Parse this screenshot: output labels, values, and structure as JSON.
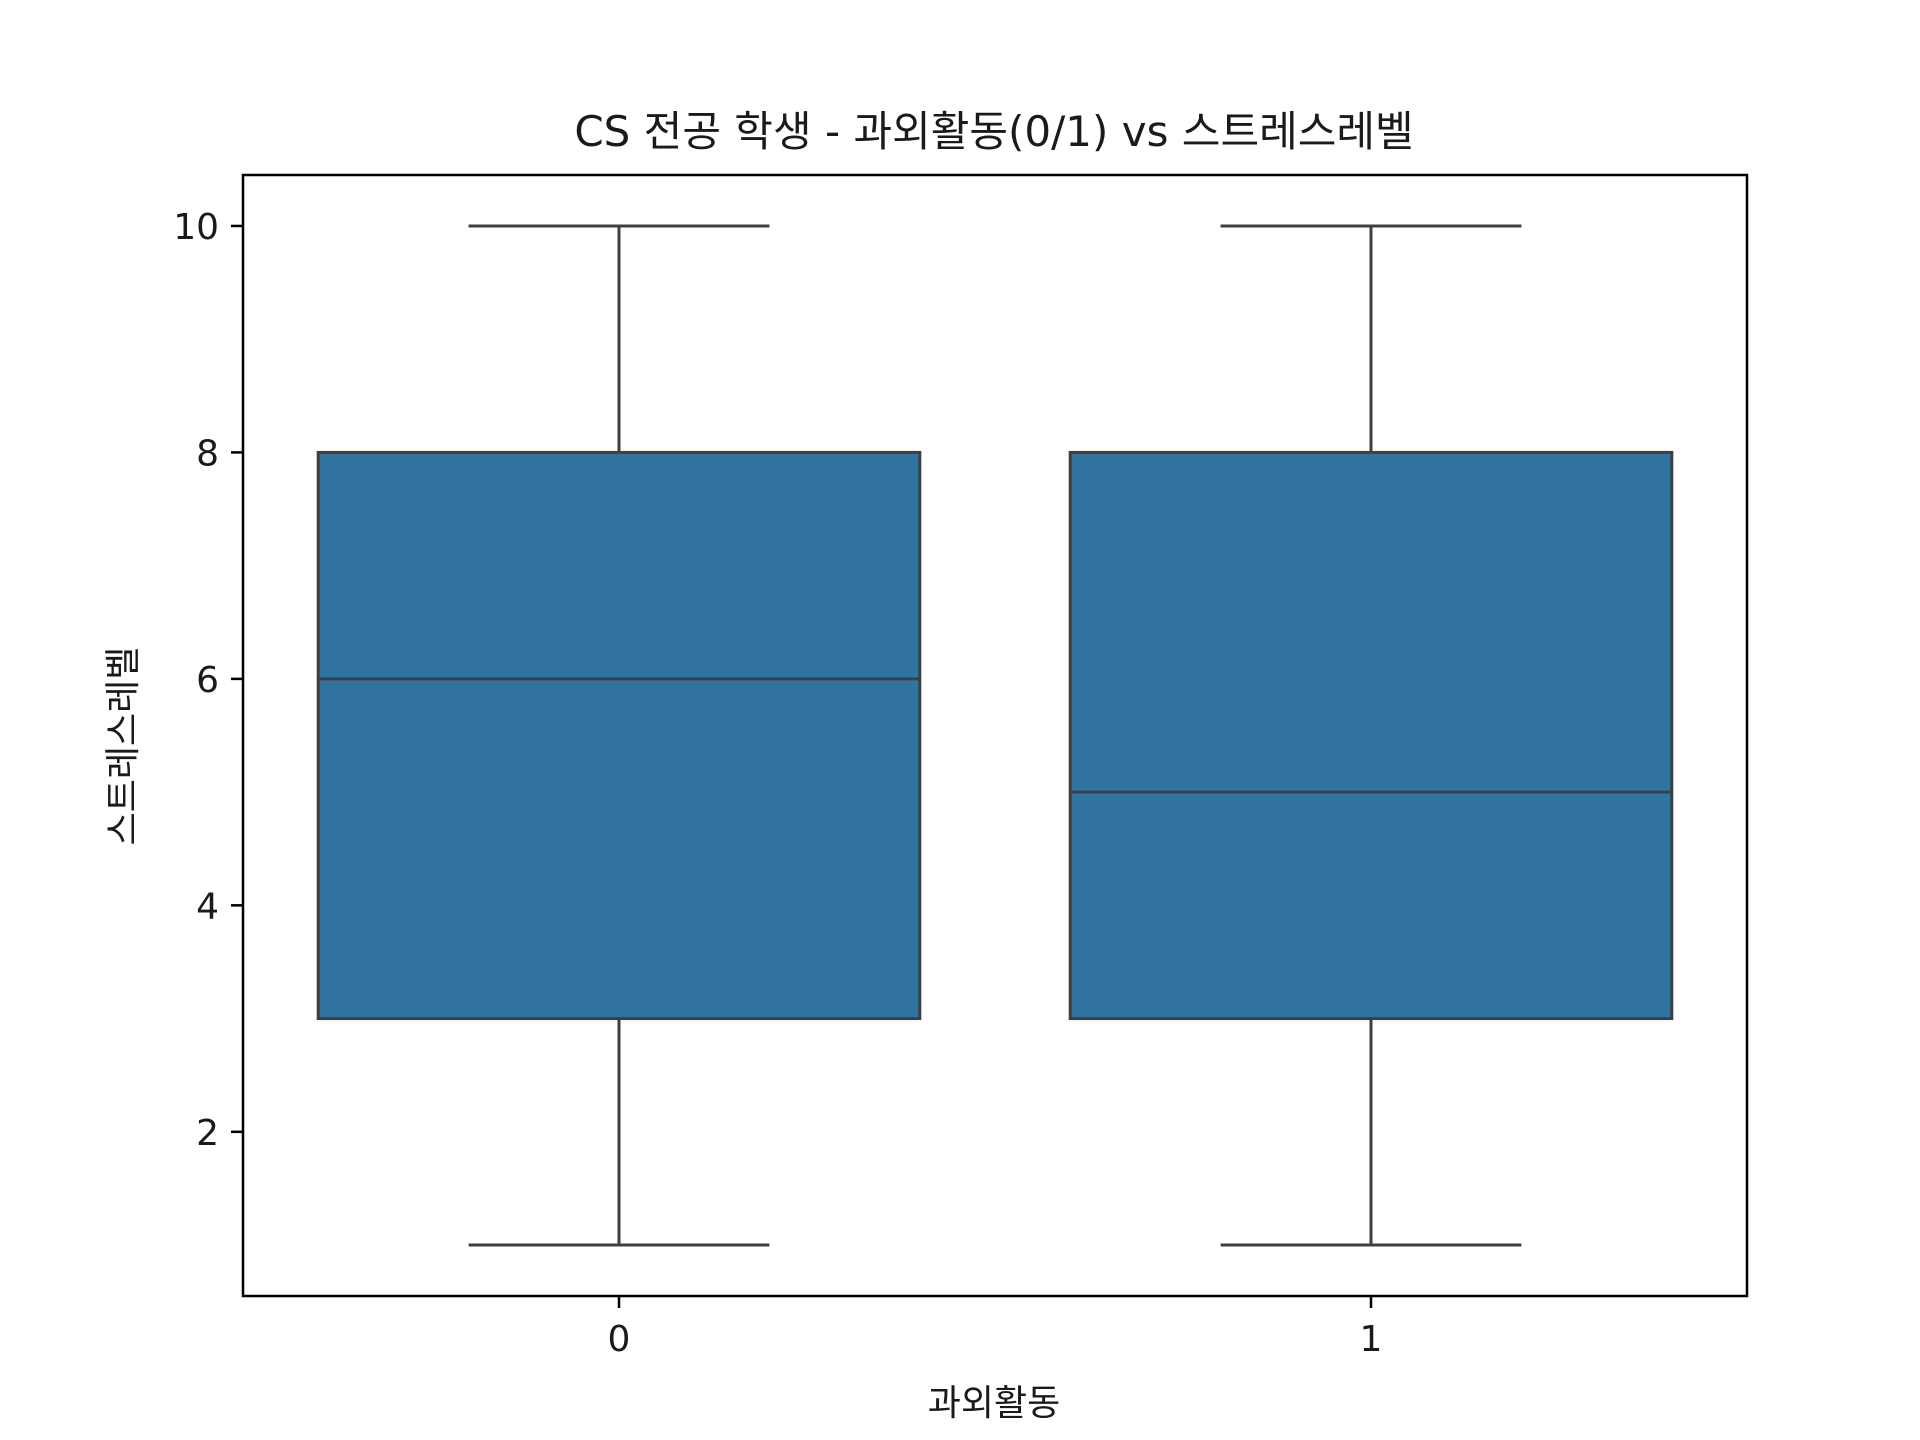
{
  "chart_data": {
    "type": "box",
    "title": "CS 전공 학생 - 과외활동(0/1) vs 스트레스레벨",
    "xlabel": "과외활동",
    "ylabel": "스트레스레벨",
    "categories": [
      "0",
      "1"
    ],
    "boxes": [
      {
        "category": "0",
        "whisker_low": 1,
        "q1": 3,
        "median": 6,
        "q3": 8,
        "whisker_high": 10
      },
      {
        "category": "1",
        "whisker_low": 1,
        "q1": 3,
        "median": 5,
        "q3": 8,
        "whisker_high": 10
      }
    ],
    "ylim": [
      0.55,
      10.45
    ],
    "yticks": [
      2,
      4,
      6,
      8,
      10
    ],
    "grid": false,
    "colors": {
      "box_fill": "#3274a1",
      "line": "#3f3f3f",
      "frame": "#000000"
    }
  }
}
